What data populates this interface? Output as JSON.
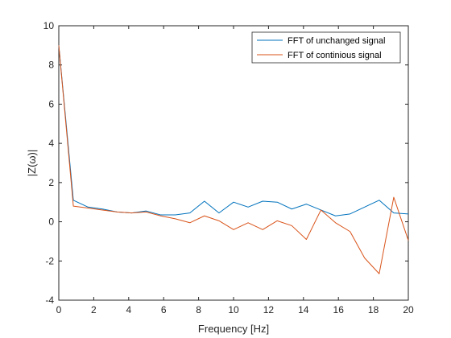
{
  "chart_data": {
    "type": "line",
    "title": "",
    "xlabel": "Frequency [Hz]",
    "ylabel": "|Z(ω)|",
    "xlim": [
      0,
      20
    ],
    "ylim": [
      -4,
      10
    ],
    "xticks": [
      0,
      2,
      4,
      6,
      8,
      10,
      12,
      14,
      16,
      18,
      20
    ],
    "yticks": [
      -4,
      -2,
      0,
      2,
      4,
      6,
      8,
      10
    ],
    "grid": false,
    "legend_position": "top-right",
    "x": [
      0,
      0.833,
      1.667,
      2.5,
      3.333,
      4.167,
      5.0,
      5.833,
      6.667,
      7.5,
      8.333,
      9.167,
      10.0,
      10.833,
      11.667,
      12.5,
      13.333,
      14.167,
      15.0,
      15.833,
      16.667,
      17.5,
      18.333,
      19.167,
      20.0
    ],
    "series": [
      {
        "name": "FFT of unchanged signal",
        "color": "#0072BD",
        "values": [
          9.0,
          1.1,
          0.75,
          0.65,
          0.5,
          0.45,
          0.55,
          0.35,
          0.35,
          0.45,
          1.05,
          0.45,
          1.0,
          0.75,
          1.05,
          1.0,
          0.65,
          0.9,
          0.6,
          0.3,
          0.4,
          0.75,
          1.1,
          0.45,
          0.4
        ]
      },
      {
        "name": "FFT of continious signal",
        "color": "#D95319",
        "values": [
          9.0,
          0.8,
          0.7,
          0.6,
          0.5,
          0.45,
          0.5,
          0.3,
          0.15,
          -0.05,
          0.3,
          0.05,
          -0.4,
          -0.05,
          -0.4,
          0.05,
          -0.2,
          -0.9,
          0.6,
          -0.05,
          -0.5,
          -1.85,
          -2.65,
          1.25,
          -0.95
        ]
      }
    ]
  }
}
